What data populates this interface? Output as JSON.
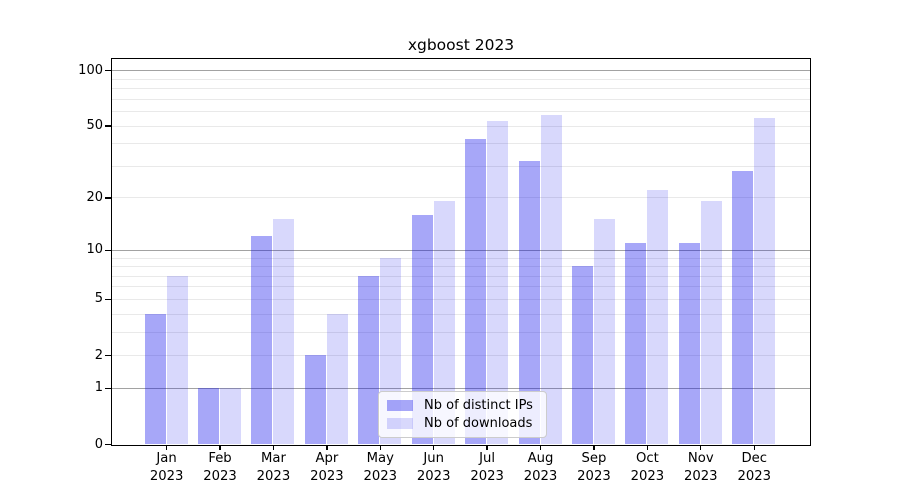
{
  "title": "xgboost 2023",
  "legend": {
    "items": [
      {
        "label": "Nb of distinct IPs",
        "color": "rgba(10,10,235,0.36)",
        "approx_hex": "#a4a4f5"
      },
      {
        "label": "Nb of downloads",
        "color": "rgba(10,10,235,0.16)",
        "approx_hex": "#d9d9f8"
      }
    ]
  },
  "chart_data": {
    "type": "bar",
    "title": "xgboost 2023",
    "categories": [
      {
        "month": "Jan",
        "year": "2023"
      },
      {
        "month": "Feb",
        "year": "2023"
      },
      {
        "month": "Mar",
        "year": "2023"
      },
      {
        "month": "Apr",
        "year": "2023"
      },
      {
        "month": "May",
        "year": "2023"
      },
      {
        "month": "Jun",
        "year": "2023"
      },
      {
        "month": "Jul",
        "year": "2023"
      },
      {
        "month": "Aug",
        "year": "2023"
      },
      {
        "month": "Sep",
        "year": "2023"
      },
      {
        "month": "Oct",
        "year": "2023"
      },
      {
        "month": "Nov",
        "year": "2023"
      },
      {
        "month": "Dec",
        "year": "2023"
      }
    ],
    "series": [
      {
        "name": "Nb of distinct IPs",
        "color": "rgba(10,10,235,0.36)",
        "values": [
          4,
          1,
          12,
          2,
          7,
          16,
          42,
          32,
          8,
          11,
          11,
          28
        ]
      },
      {
        "name": "Nb of downloads",
        "color": "rgba(10,10,235,0.16)",
        "values": [
          7,
          1,
          15,
          4,
          9,
          19,
          53,
          57,
          15,
          22,
          19,
          55
        ]
      }
    ],
    "xlabel": "",
    "ylabel": "",
    "yscale": "log1p",
    "ylim": [
      0,
      116
    ],
    "yticks": [
      0,
      1,
      2,
      5,
      10,
      20,
      50,
      100
    ],
    "yticks_decade_gridlines": [
      1,
      10,
      100
    ],
    "yticks_minor": [
      3,
      4,
      6,
      7,
      8,
      9,
      30,
      40,
      60,
      70,
      80,
      90
    ],
    "grid": true,
    "legend_position": "lower center"
  }
}
